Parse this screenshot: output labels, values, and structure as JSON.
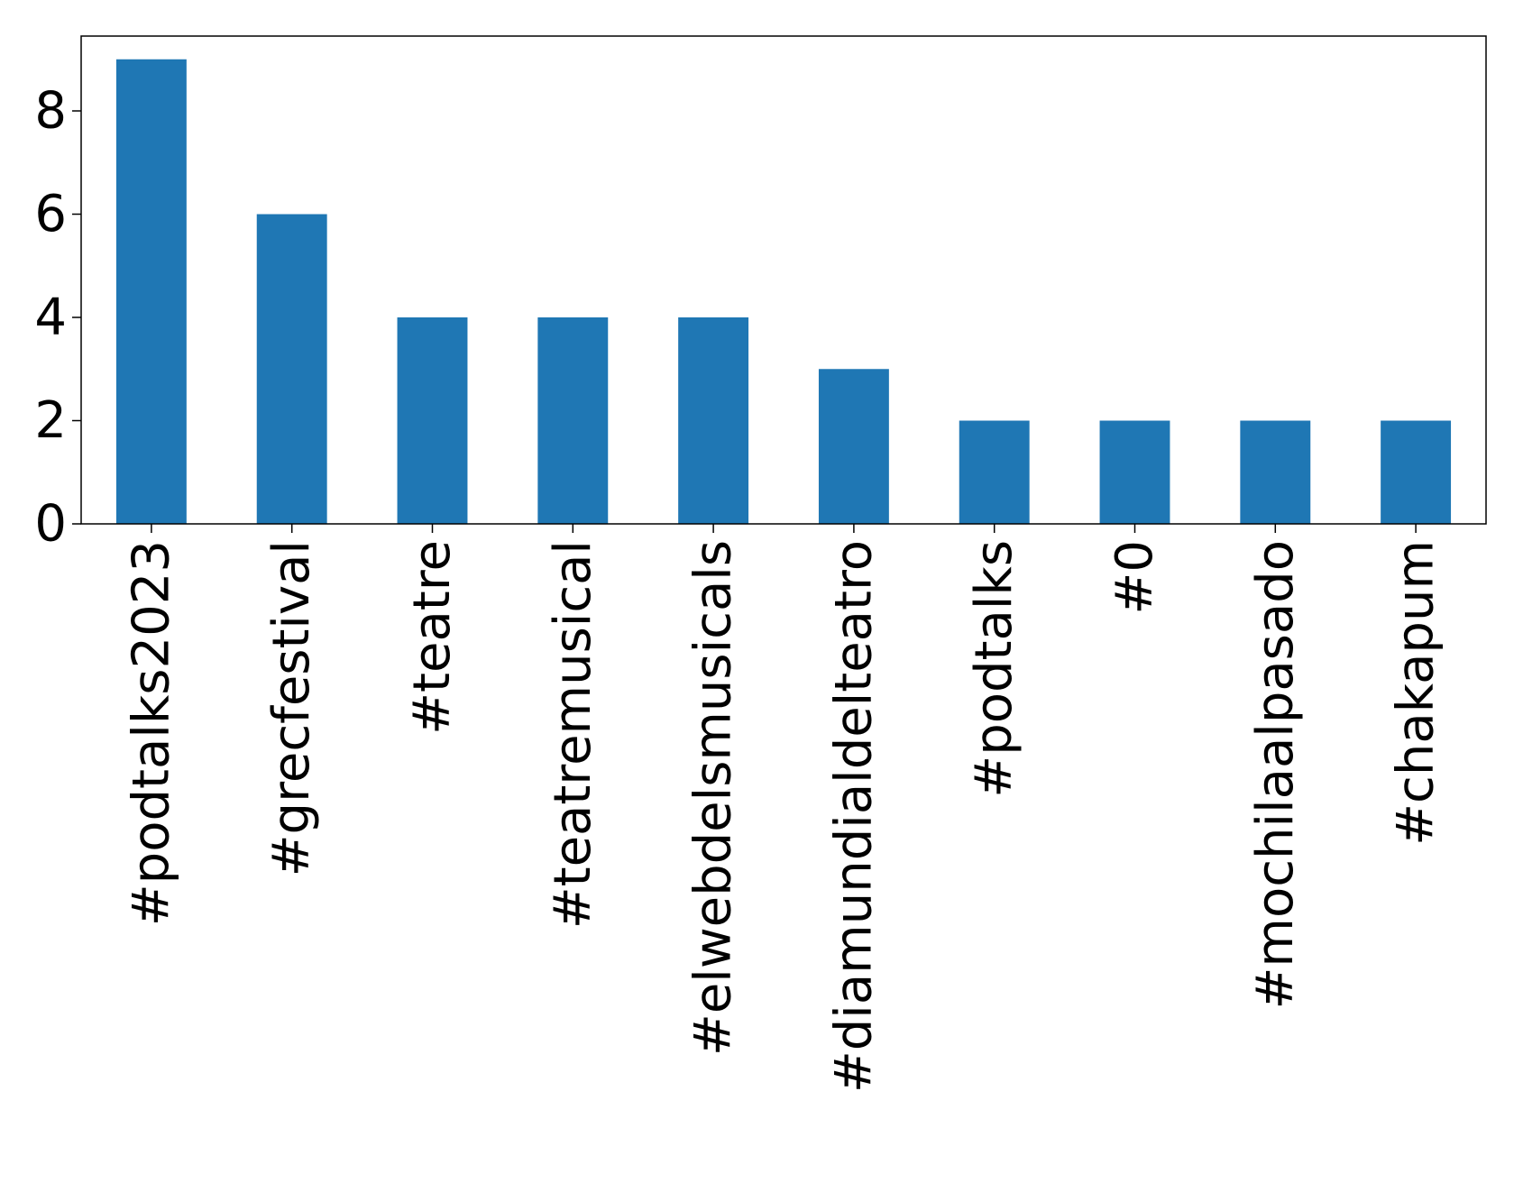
{
  "chart_data": {
    "type": "bar",
    "title": "",
    "xlabel": "",
    "ylabel": "",
    "categories": [
      "#podtalks2023",
      "#grecfestival",
      "#teatre",
      "#teatremusical",
      "#elwebdelsmusicals",
      "#diamundialdelteatro",
      "#podtalks",
      "#0",
      "#mochilaalpasado",
      "#chakapum"
    ],
    "values": [
      9,
      6,
      4,
      4,
      4,
      3,
      2,
      2,
      2,
      2
    ],
    "ylim": [
      0,
      9.45
    ],
    "yticks": [
      0,
      2,
      4,
      6,
      8
    ],
    "grid": false,
    "legend": "none",
    "bar_color": "#1f77b4"
  }
}
